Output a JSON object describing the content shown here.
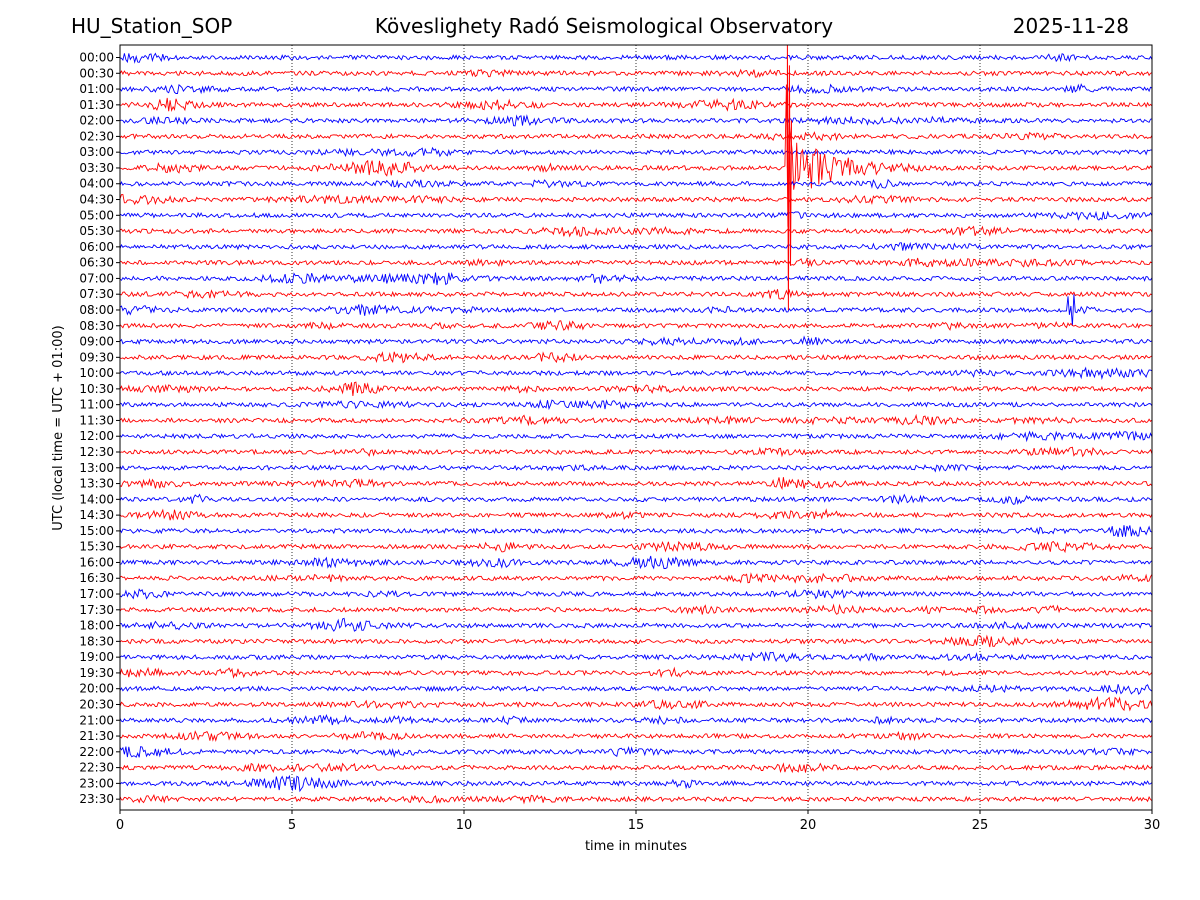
{
  "header": {
    "station": "HU_Station_SOP",
    "observatory": "Köveslighety Radó Seismological Observatory",
    "date": "2025-11-28"
  },
  "chart_data": {
    "type": "line",
    "title": "Köveslighety Radó Seismological Observatory",
    "xlabel": "time in minutes",
    "ylabel": "UTC (local time = UTC + 01:00)",
    "xlim": [
      0,
      30
    ],
    "x_ticks": [
      0,
      5,
      10,
      15,
      20,
      25,
      30
    ],
    "grid": "vertical dotted lines at x ticks",
    "series_colors": [
      "#0000ff",
      "#ff0000"
    ],
    "row_labels": [
      "00:00",
      "00:30",
      "01:00",
      "01:30",
      "02:00",
      "02:30",
      "03:00",
      "03:30",
      "04:00",
      "04:30",
      "05:00",
      "05:30",
      "06:00",
      "06:30",
      "07:00",
      "07:30",
      "08:00",
      "08:30",
      "09:00",
      "09:30",
      "10:00",
      "10:30",
      "11:00",
      "11:30",
      "12:00",
      "12:30",
      "13:00",
      "13:30",
      "14:00",
      "14:30",
      "15:00",
      "15:30",
      "16:00",
      "16:30",
      "17:00",
      "17:30",
      "18:00",
      "18:30",
      "19:00",
      "19:30",
      "20:00",
      "20:30",
      "21:00",
      "21:30",
      "22:00",
      "22:30",
      "23:00",
      "23:30"
    ],
    "events": [
      {
        "row": "03:30",
        "start_min": 19.4,
        "amplitude_rows": 7.5,
        "duration_min": 4,
        "note": "large spike with coda"
      },
      {
        "row": "08:00",
        "start_min": 27.6,
        "amplitude_rows": 1.2,
        "duration_min": 1.5,
        "note": "local event"
      }
    ]
  }
}
